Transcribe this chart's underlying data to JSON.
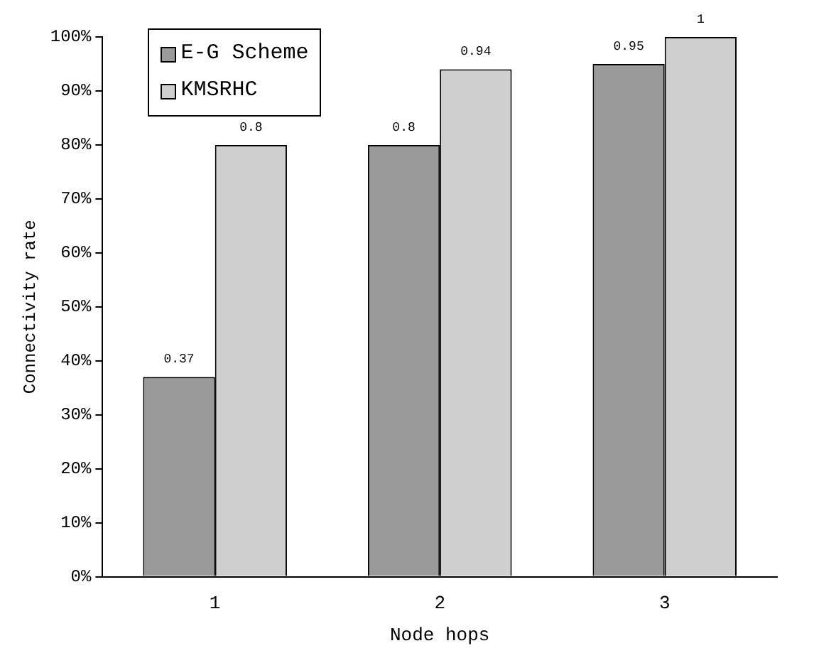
{
  "chart_data": {
    "type": "bar",
    "xlabel": "Node hops",
    "ylabel": "Connectivity rate",
    "categories": [
      "1",
      "2",
      "3"
    ],
    "series": [
      {
        "name": "E-G Scheme",
        "color": "#9a9a9a",
        "values": [
          0.37,
          0.8,
          0.95
        ]
      },
      {
        "name": "KMSRHC",
        "color": "#cfcfcf",
        "values": [
          0.8,
          0.94,
          1
        ]
      }
    ],
    "ylim": [
      0,
      1
    ],
    "yticks": [
      {
        "value": 0,
        "label": "0%"
      },
      {
        "value": 0.1,
        "label": "10%"
      },
      {
        "value": 0.2,
        "label": "20%"
      },
      {
        "value": 0.3,
        "label": "30%"
      },
      {
        "value": 0.4,
        "label": "40%"
      },
      {
        "value": 0.5,
        "label": "50%"
      },
      {
        "value": 0.6,
        "label": "60%"
      },
      {
        "value": 0.7,
        "label": "70%"
      },
      {
        "value": 0.8,
        "label": "80%"
      },
      {
        "value": 0.9,
        "label": "90%"
      },
      {
        "value": 1,
        "label": "100%"
      }
    ],
    "grid": false,
    "legend": "top left",
    "data_labels": true
  }
}
